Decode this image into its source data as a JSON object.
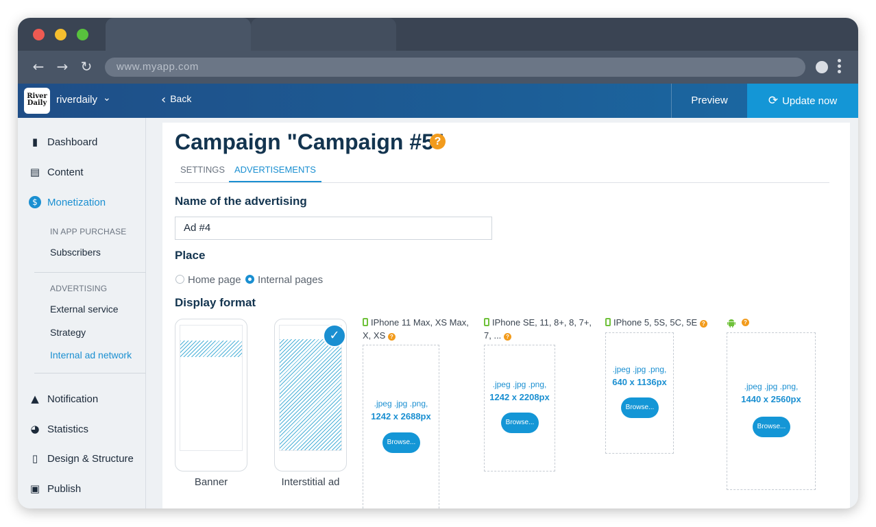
{
  "browser": {
    "url": "www.myapp.com",
    "traffic_lights": [
      "#ee5a52",
      "#f5be2e",
      "#58c23d"
    ],
    "icons": [
      "back-arrow-icon",
      "forward-arrow-icon",
      "reload-icon",
      "profile-icon",
      "kebab-menu-icon"
    ]
  },
  "appbar": {
    "brand_logo_lines": [
      "River",
      "Daily"
    ],
    "brand": "riverdaily",
    "back": "Back",
    "preview": "Preview",
    "update": "Update now",
    "accent": "#1496d6"
  },
  "sidebar": {
    "items": [
      {
        "label": "Dashboard",
        "icon": "bar-chart-icon"
      },
      {
        "label": "Content",
        "icon": "document-icon"
      },
      {
        "label": "Monetization",
        "icon": "dollar-icon",
        "active": true
      },
      {
        "label": "Notification",
        "icon": "bell-icon"
      },
      {
        "label": "Statistics",
        "icon": "pie-chart-icon"
      },
      {
        "label": "Design & Structure",
        "icon": "phone-icon"
      },
      {
        "label": "Publish",
        "icon": "publish-icon"
      }
    ],
    "in_app_heading": "IN APP PURCHASE",
    "in_app_items": [
      "Subscribers"
    ],
    "advertising_heading": "ADVERTISING",
    "advertising_items": [
      "External service",
      "Strategy",
      "Internal ad network"
    ],
    "active_sub": "Internal ad network"
  },
  "main": {
    "title": "Campaign \"Campaign #5\"",
    "help": "?",
    "tabs": [
      {
        "label": "SETTINGS",
        "active": false
      },
      {
        "label": "ADVERTISEMENTS",
        "active": true
      }
    ],
    "name_label": "Name of the advertising",
    "name_value": "Ad #4",
    "place_label": "Place",
    "place_options": [
      {
        "label": "Home page",
        "selected": false
      },
      {
        "label": "Internal pages",
        "selected": true
      }
    ],
    "format_label": "Display format",
    "formats": [
      {
        "label": "Banner",
        "selected": false
      },
      {
        "label": "Interstitial ad",
        "selected": true
      }
    ],
    "devices": [
      {
        "title_line1": "IPhone 11 Max, XS Max,",
        "title_line2": "X, XS",
        "formats": ".jpeg .jpg .png,",
        "size": "1242 x 2688px",
        "browse": "Browse..."
      },
      {
        "title_line1": "IPhone SE, 11, 8+, 8, 7+,",
        "title_line2": "7, ...",
        "formats": ".jpeg .jpg .png,",
        "size": "1242 x 2208px",
        "browse": "Browse..."
      },
      {
        "title_line1": "IPhone 5, 5S, 5C, 5E",
        "title_line2": "",
        "formats": ".jpeg .jpg .png,",
        "size": "640 x 1136px",
        "browse": "Browse..."
      },
      {
        "title_line1": "",
        "title_line2": "",
        "icon": "android-icon",
        "formats": ".jpeg .jpg .png,",
        "size": "1440 x 2560px",
        "browse": "Browse..."
      }
    ]
  }
}
